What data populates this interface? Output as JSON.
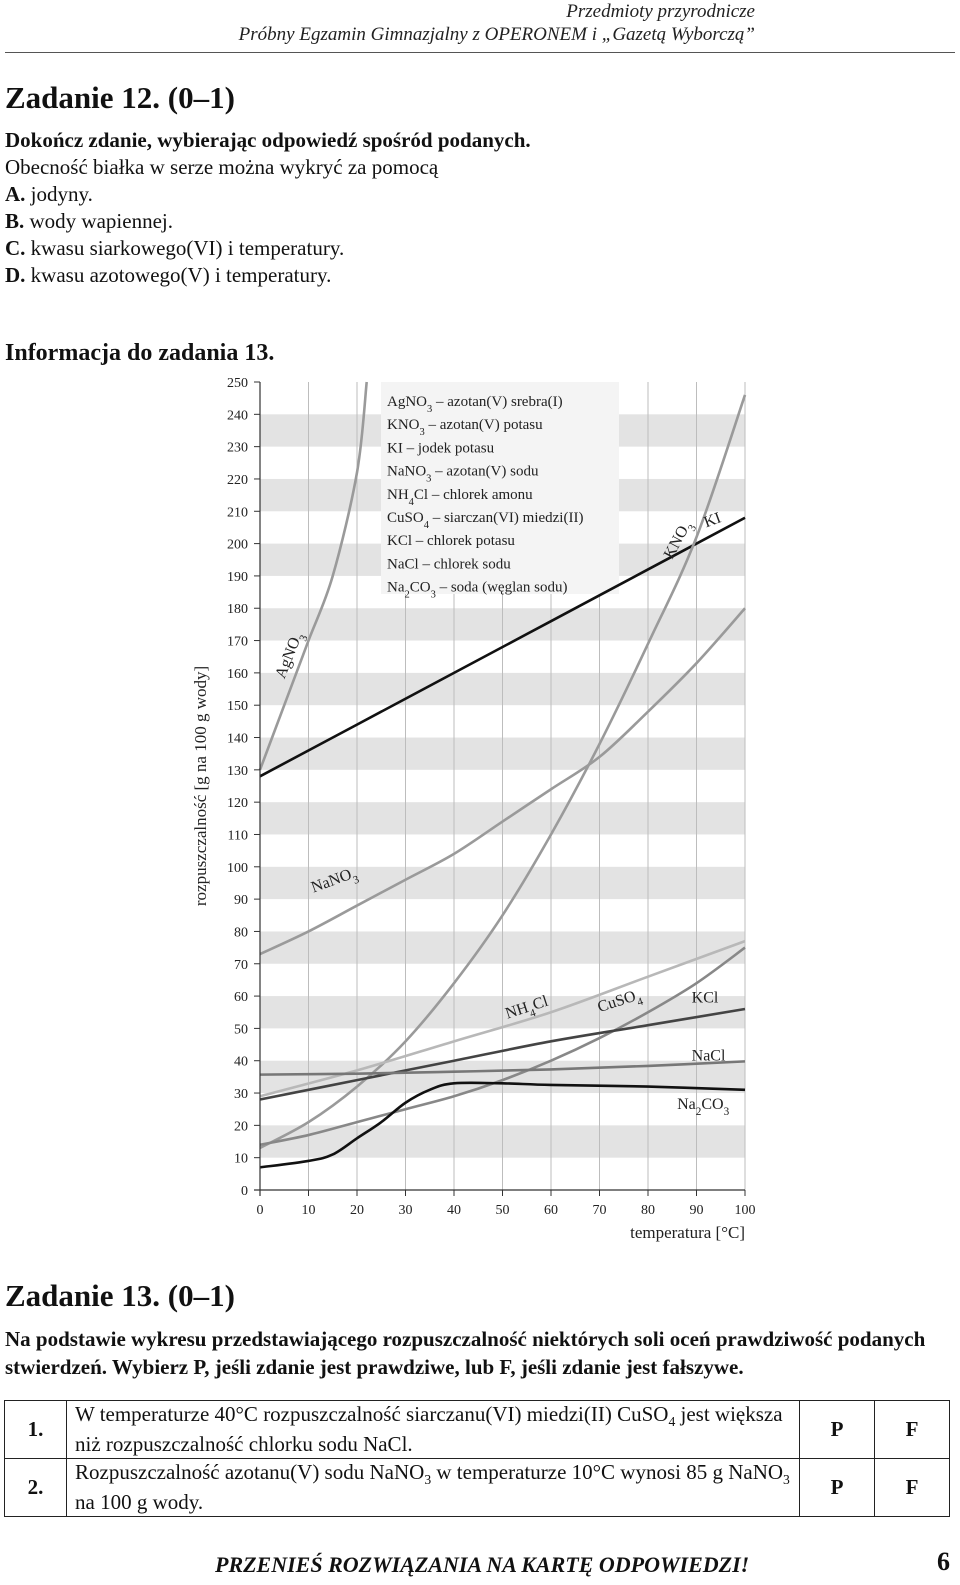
{
  "header": {
    "subject": "Przedmioty przyrodnicze",
    "exam": "Próbny Egzamin Gimnazjalny z OPERONEM i „Gazetą Wyborczą”"
  },
  "task12": {
    "title": "Zadanie 12. (0–1)",
    "instruction": "Dokończ zdanie, wybierając odpowiedź spośród podanych.",
    "stem": "Obecność białka w serze można wykryć za pomocą",
    "options": [
      {
        "letter": "A.",
        "text": "jodyny."
      },
      {
        "letter": "B.",
        "text": "wody wapiennej."
      },
      {
        "letter": "C.",
        "text": "kwasu siarkowego(VI) i temperatury."
      },
      {
        "letter": "D.",
        "text": "kwasu azotowego(V) i temperatury."
      }
    ]
  },
  "info13": "Informacja do zadania 13.",
  "chart_data": {
    "type": "line",
    "xlabel": "temperatura [°C]",
    "ylabel": "rozpuszczalność [g na 100 g wody]",
    "xlim": [
      0,
      100
    ],
    "ylim": [
      0,
      250
    ],
    "xticks": [
      "0",
      "10",
      "20",
      "30",
      "40",
      "50",
      "60",
      "70",
      "80",
      "90",
      "100"
    ],
    "yticks": [
      "0",
      "10",
      "20",
      "30",
      "40",
      "50",
      "60",
      "70",
      "80",
      "90",
      "100",
      "110",
      "120",
      "130",
      "140",
      "150",
      "160",
      "170",
      "180",
      "190",
      "200",
      "210",
      "220",
      "230",
      "240",
      "250"
    ],
    "grid": true,
    "legend_position": "top-center",
    "legend": [
      {
        "formula": "AgNO3",
        "desc": "azotan(V) srebra(I)"
      },
      {
        "formula": "KNO3",
        "desc": "azotan(V) potasu"
      },
      {
        "formula": "KI",
        "desc": "jodek potasu"
      },
      {
        "formula": "NaNO3",
        "desc": "azotan(V) sodu"
      },
      {
        "formula": "NH4Cl",
        "desc": "chlorek amonu"
      },
      {
        "formula": "CuSO4",
        "desc": "siarczan(VI) miedzi(II)"
      },
      {
        "formula": "KCl",
        "desc": "chlorek potasu"
      },
      {
        "formula": "NaCl",
        "desc": "chlorek sodu"
      },
      {
        "formula": "Na2CO3",
        "desc": "soda (węglan sodu)"
      }
    ],
    "series": [
      {
        "name": "AgNO3",
        "color": "#9a9a9a",
        "x": [
          0,
          5,
          10,
          15,
          20,
          22
        ],
        "y": [
          130,
          150,
          170,
          190,
          222,
          250
        ]
      },
      {
        "name": "KI",
        "color": "#111111",
        "x": [
          0,
          20,
          40,
          60,
          80,
          100
        ],
        "y": [
          128,
          144,
          160,
          176,
          192,
          208
        ]
      },
      {
        "name": "KNO3",
        "color": "#9a9a9a",
        "x": [
          0,
          10,
          20,
          30,
          40,
          50,
          60,
          70,
          80,
          90,
          100
        ],
        "y": [
          13,
          21,
          32,
          46,
          64,
          85,
          110,
          138,
          169,
          202,
          246
        ]
      },
      {
        "name": "NaNO3",
        "color": "#9a9a9a",
        "x": [
          0,
          10,
          20,
          30,
          40,
          50,
          60,
          70,
          80,
          90,
          100
        ],
        "y": [
          73,
          80,
          88,
          96,
          104,
          114,
          124,
          134,
          148,
          163,
          180
        ]
      },
      {
        "name": "NH4Cl",
        "color": "#b8b8b8",
        "x": [
          0,
          20,
          40,
          60,
          80,
          100
        ],
        "y": [
          29,
          37,
          46,
          55,
          66,
          77
        ]
      },
      {
        "name": "CuSO4",
        "color": "#888888",
        "x": [
          0,
          10,
          20,
          30,
          40,
          50,
          60,
          70,
          80,
          90,
          100
        ],
        "y": [
          14,
          17,
          21,
          25,
          29,
          34,
          40,
          47,
          55,
          64,
          75
        ]
      },
      {
        "name": "KCl",
        "color": "#444444",
        "x": [
          0,
          20,
          40,
          60,
          80,
          100
        ],
        "y": [
          28,
          34,
          40,
          46,
          51,
          56
        ]
      },
      {
        "name": "NaCl",
        "color": "#777777",
        "x": [
          0,
          20,
          40,
          60,
          80,
          100
        ],
        "y": [
          35.7,
          36,
          36.6,
          37.3,
          38.4,
          39.8
        ]
      },
      {
        "name": "Na2CO3",
        "color": "#111111",
        "x": [
          0,
          10,
          15,
          20,
          25,
          30,
          35,
          40,
          50,
          60,
          80,
          100
        ],
        "y": [
          7,
          9,
          11,
          16,
          21,
          27,
          31,
          33,
          33,
          32.5,
          32,
          31
        ]
      }
    ],
    "curve_labels": [
      {
        "text": "AgNO",
        "sub": "3"
      },
      {
        "text": "KNO",
        "sub": "3"
      },
      {
        "text": "KI",
        "sub": ""
      },
      {
        "text": "NaNO",
        "sub": "3"
      },
      {
        "text": "NH",
        "sub": "4",
        "after": "Cl"
      },
      {
        "text": "CuSO",
        "sub": "4"
      },
      {
        "text": "KCl",
        "sub": ""
      },
      {
        "text": "NaCl",
        "sub": ""
      },
      {
        "text": "Na",
        "sub": "2",
        "after": "CO",
        "sub2": "3"
      }
    ]
  },
  "task13": {
    "title": "Zadanie 13. (0–1)",
    "prompt": "Na podstawie wykresu przedstawiającego rozpuszczalność niektórych soli oceń prawdziwość podanych stwierdzeń. Wybierz P, jeśli zdanie jest prawdziwe, lub F, jeśli zdanie jest fałszywe.",
    "rows": [
      {
        "num": "1.",
        "text_a": "W temperaturze 40°C rozpuszczalność siarczanu(VI) miedzi(II) CuSO",
        "sub_a": "4",
        "text_b": " jest większa niż rozpuszczalność chlorku sodu NaCl.",
        "p": "P",
        "f": "F"
      },
      {
        "num": "2.",
        "text_a": "Rozpuszczalność azotanu(V) sodu NaNO",
        "sub_a": "3",
        "text_b": " w temperaturze 10°C wynosi 85 g NaNO",
        "sub_b": "3",
        "text_c": " na 100 g wody.",
        "p": "P",
        "f": "F"
      }
    ]
  },
  "footer": {
    "note": "PRZENIEŚ ROZWIĄZANIA NA KARTĘ ODPOWIEDZI!",
    "page": "6"
  }
}
